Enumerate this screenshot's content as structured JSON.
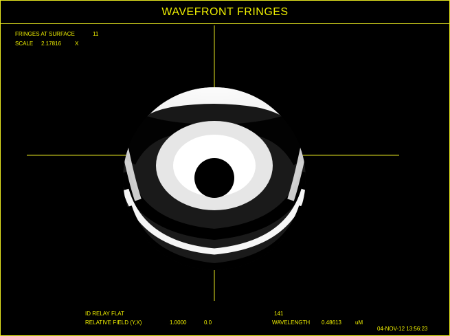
{
  "window": {
    "title": "WAVEFRONT FRINGES"
  },
  "header_info": {
    "fringes_label": "FRINGES AT SURFACE",
    "fringes_value": "11",
    "scale_label": "SCALE",
    "scale_value": "2.17816",
    "scale_unit": "X"
  },
  "footer_info": {
    "system_name": "ID RELAY FLAT",
    "system_number": "141",
    "field_label": "RELATIVE FIELD (Y,X)",
    "field_y": "1.0000",
    "field_x": "0.0",
    "wavelength_label": "WAVELENGTH",
    "wavelength_value": "0.48613",
    "wavelength_unit": "uM",
    "datetime": "04-NOV-12  13:56:23"
  },
  "colors": {
    "text": "#f0f000",
    "background": "#000000",
    "crosshair": "#e8e820"
  }
}
